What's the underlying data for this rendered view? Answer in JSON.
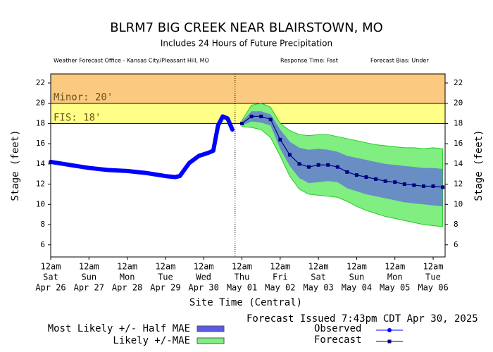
{
  "chart_data": {
    "type": "hydrograph",
    "title": "BLRM7 BIG CREEK NEAR BLAIRSTOWN, MO",
    "subtitle": "Includes  24 Hours of Future Precipitation",
    "info": [
      "Weather Forecast Office - Kansas City/Pleasant Hill, MO",
      "Response Time: Fast",
      "Forecast Bias:  Under"
    ],
    "y_label": "Stage (feet)",
    "x_label": "Site Time (Central)",
    "issued": "Forecast Issued 7:43pm CDT Apr 30, 2025",
    "issue_time": "2025-04-30T19:43",
    "xlim": [
      "2025-04-26T00:00",
      "2025-05-06T07:30"
    ],
    "ylim": [
      4.8,
      22.9
    ],
    "yticks": [
      6,
      8,
      10,
      12,
      14,
      16,
      18,
      20,
      22
    ],
    "xticks": [
      {
        "value": "2025-04-26T00:00",
        "label": [
          "12am",
          "Sat",
          "Apr 26"
        ]
      },
      {
        "value": "2025-04-27T00:00",
        "label": [
          "12am",
          "Sun",
          "Apr 27"
        ]
      },
      {
        "value": "2025-04-28T00:00",
        "label": [
          "12am",
          "Mon",
          "Apr 28"
        ]
      },
      {
        "value": "2025-04-29T00:00",
        "label": [
          "12am",
          "Tue",
          "Apr 29"
        ]
      },
      {
        "value": "2025-04-30T00:00",
        "label": [
          "12am",
          "Wed",
          "Apr 30"
        ]
      },
      {
        "value": "2025-05-01T00:00",
        "label": [
          "12am",
          "Thu",
          "May 01"
        ]
      },
      {
        "value": "2025-05-02T00:00",
        "label": [
          "12am",
          "Fri",
          "May 02"
        ]
      },
      {
        "value": "2025-05-03T00:00",
        "label": [
          "12am",
          "Sat",
          "May 03"
        ]
      },
      {
        "value": "2025-05-04T00:00",
        "label": [
          "12am",
          "Sun",
          "May 04"
        ]
      },
      {
        "value": "2025-05-05T00:00",
        "label": [
          "12am",
          "Mon",
          "May 05"
        ]
      },
      {
        "value": "2025-05-06T00:00",
        "label": [
          "12am",
          "Tue",
          "May 06"
        ]
      }
    ],
    "thresholds": [
      {
        "label": "Minor: 20'",
        "value": 20,
        "color": "#fbc97f"
      },
      {
        "label": "FIS: 18'",
        "value": 18,
        "color": "#ffff88"
      }
    ],
    "bands": [
      {
        "name": "Likely +/-MAE",
        "color": "#80ee80",
        "x": [
          "2025-05-01T00:00",
          "2025-05-01T06:00",
          "2025-05-01T12:00",
          "2025-05-01T18:00",
          "2025-05-02T00:00",
          "2025-05-02T06:00",
          "2025-05-02T12:00",
          "2025-05-02T18:00",
          "2025-05-03T00:00",
          "2025-05-03T06:00",
          "2025-05-03T12:00",
          "2025-05-03T18:00",
          "2025-05-04T00:00",
          "2025-05-04T06:00",
          "2025-05-04T12:00",
          "2025-05-04T18:00",
          "2025-05-05T00:00",
          "2025-05-05T06:00",
          "2025-05-05T12:00",
          "2025-05-05T18:00",
          "2025-05-06T00:00",
          "2025-05-06T06:00"
        ],
        "upper": [
          18.3,
          19.8,
          20.0,
          19.6,
          18.0,
          17.3,
          16.9,
          16.8,
          16.9,
          16.9,
          16.7,
          16.5,
          16.3,
          16.1,
          15.9,
          15.8,
          15.7,
          15.6,
          15.6,
          15.5,
          15.6,
          15.5
        ],
        "lower": [
          17.7,
          17.6,
          17.4,
          16.6,
          14.8,
          12.8,
          11.5,
          11.0,
          10.9,
          10.8,
          10.7,
          10.3,
          9.8,
          9.4,
          9.1,
          8.8,
          8.6,
          8.4,
          8.2,
          8.0,
          7.9,
          7.8
        ]
      },
      {
        "name": "Most Likely +/- Half MAE",
        "color": "#5a5ae6",
        "x": [
          "2025-05-01T00:00",
          "2025-05-01T06:00",
          "2025-05-01T12:00",
          "2025-05-01T18:00",
          "2025-05-02T00:00",
          "2025-05-02T06:00",
          "2025-05-02T12:00",
          "2025-05-02T18:00",
          "2025-05-03T00:00",
          "2025-05-03T06:00",
          "2025-05-03T12:00",
          "2025-05-03T18:00",
          "2025-05-04T00:00",
          "2025-05-04T06:00",
          "2025-05-04T12:00",
          "2025-05-04T18:00",
          "2025-05-05T00:00",
          "2025-05-05T06:00",
          "2025-05-05T12:00",
          "2025-05-05T18:00",
          "2025-05-06T00:00",
          "2025-05-06T06:00"
        ],
        "upper": [
          18.2,
          19.2,
          19.2,
          18.9,
          17.4,
          16.2,
          15.6,
          15.4,
          15.5,
          15.4,
          15.2,
          14.8,
          14.6,
          14.4,
          14.2,
          14.0,
          13.9,
          13.8,
          13.7,
          13.6,
          13.6,
          13.5
        ],
        "lower": [
          17.8,
          18.2,
          18.1,
          17.8,
          15.5,
          13.8,
          12.6,
          12.1,
          12.2,
          12.3,
          12.2,
          11.6,
          11.3,
          11.0,
          10.8,
          10.6,
          10.4,
          10.2,
          10.1,
          10.0,
          9.9,
          9.8
        ]
      }
    ],
    "series": [
      {
        "name": "Observed",
        "color": "#0000ff",
        "x": [
          "2025-04-26T00:00",
          "2025-04-26T12:00",
          "2025-04-27T00:00",
          "2025-04-27T12:00",
          "2025-04-28T00:00",
          "2025-04-28T12:00",
          "2025-04-29T00:00",
          "2025-04-29T06:00",
          "2025-04-29T09:00",
          "2025-04-29T15:00",
          "2025-04-29T21:00",
          "2025-04-30T03:00",
          "2025-04-30T06:00",
          "2025-04-30T09:00",
          "2025-04-30T12:00",
          "2025-04-30T15:00",
          "2025-04-30T18:00"
        ],
        "values": [
          14.2,
          13.9,
          13.6,
          13.4,
          13.3,
          13.1,
          12.8,
          12.7,
          12.8,
          14.1,
          14.8,
          15.1,
          15.3,
          17.8,
          18.7,
          18.5,
          17.4
        ]
      },
      {
        "name": "Forecast",
        "color": "#000080",
        "x": [
          "2025-05-01T00:00",
          "2025-05-01T06:00",
          "2025-05-01T12:00",
          "2025-05-01T18:00",
          "2025-05-02T00:00",
          "2025-05-02T06:00",
          "2025-05-02T12:00",
          "2025-05-02T18:00",
          "2025-05-03T00:00",
          "2025-05-03T06:00",
          "2025-05-03T12:00",
          "2025-05-03T18:00",
          "2025-05-04T00:00",
          "2025-05-04T06:00",
          "2025-05-04T12:00",
          "2025-05-04T18:00",
          "2025-05-05T00:00",
          "2025-05-05T06:00",
          "2025-05-05T12:00",
          "2025-05-05T18:00",
          "2025-05-06T00:00",
          "2025-05-06T06:00"
        ],
        "values": [
          18.0,
          18.7,
          18.7,
          18.4,
          16.4,
          14.9,
          14.0,
          13.7,
          13.9,
          13.9,
          13.7,
          13.2,
          12.9,
          12.7,
          12.5,
          12.3,
          12.2,
          12.0,
          11.9,
          11.8,
          11.8,
          11.7
        ]
      }
    ]
  }
}
